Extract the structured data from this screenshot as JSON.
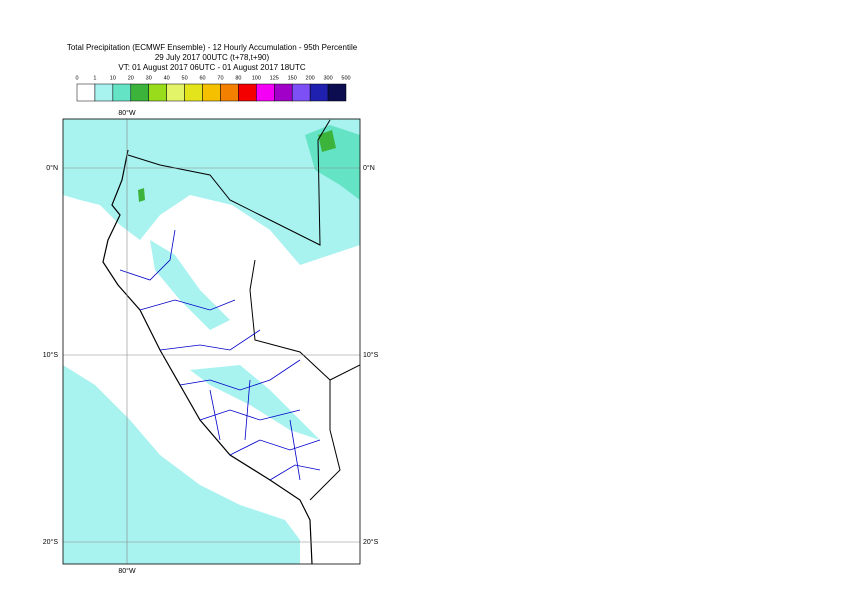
{
  "header": {
    "lines": [
      "Total Precipitation (ECMWF Ensemble) - 12 Hourly Accumulation - 95th Percentile",
      "29 July 2017 00UTC (t+78,t+90)",
      "VT: 01 August 2017 06UTC - 01 August 2017 18UTC"
    ]
  },
  "legend": {
    "labels": [
      0,
      1,
      10,
      20,
      30,
      40,
      50,
      60,
      70,
      80,
      100,
      125,
      150,
      200,
      300,
      500
    ],
    "colors": [
      "#ffffff",
      "#a8f2f0",
      "#64e4c4",
      "#3cb43c",
      "#98dc1c",
      "#e4f468",
      "#e4e41c",
      "#f4c000",
      "#f48000",
      "#f40000",
      "#f400f4",
      "#a000c8",
      "#7c50f4",
      "#2020b0",
      "#0c0c50"
    ]
  },
  "map": {
    "lon_label": "80°W",
    "lat_labels": [
      "0°N",
      "10°S",
      "20°S"
    ]
  }
}
